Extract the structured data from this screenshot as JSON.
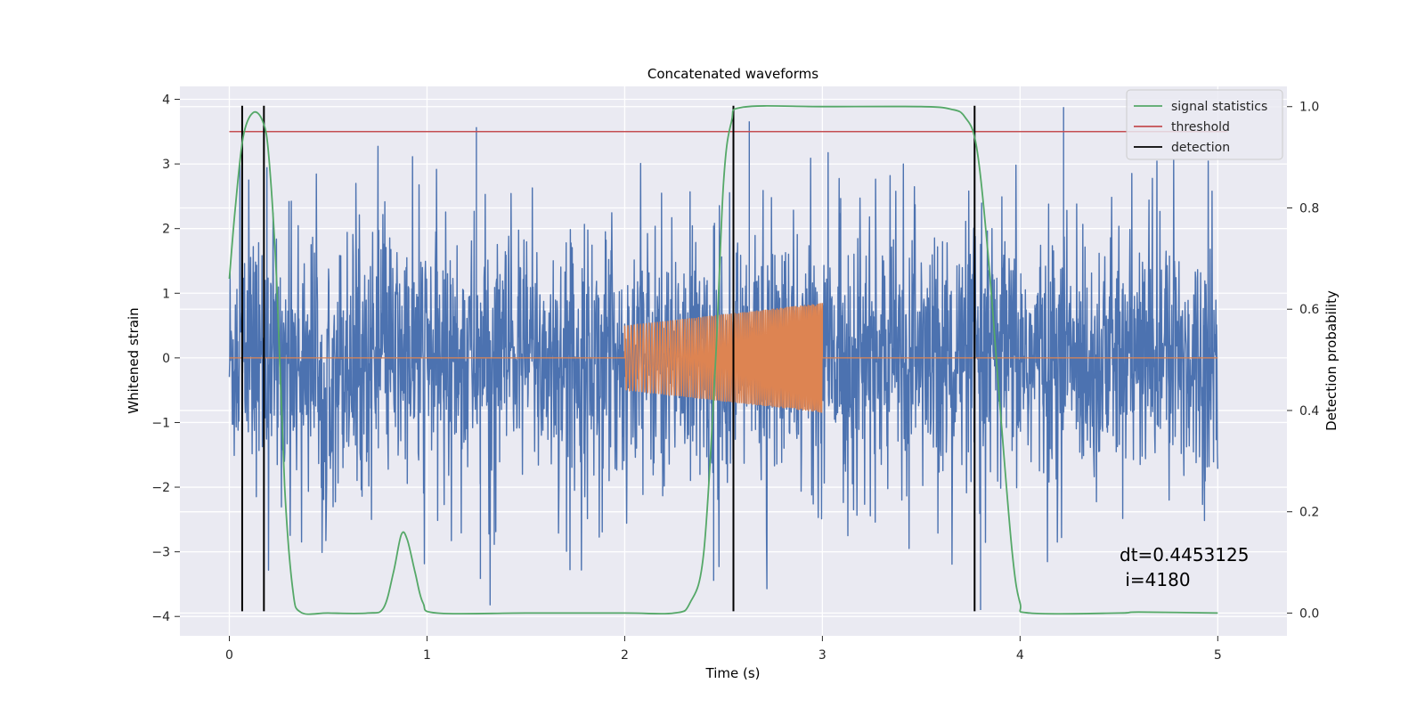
{
  "chart_data": {
    "type": "line",
    "title": "Concatenated waveforms",
    "xlabel": "Time (s)",
    "ylabel": "Whitened strain",
    "y2label": "Detection probability",
    "xlim": [
      -0.25,
      5.35
    ],
    "ylim": [
      -4.3,
      4.2
    ],
    "y2lim": [
      -0.045,
      1.04
    ],
    "xticks": [
      0,
      1,
      2,
      3,
      4,
      5
    ],
    "yticks": [
      -4,
      -3,
      -2,
      -1,
      0,
      1,
      2,
      3,
      4
    ],
    "y2ticks": [
      0.0,
      0.2,
      0.4,
      0.6,
      0.8,
      1.0
    ],
    "xtick_labels": [
      "0",
      "1",
      "2",
      "3",
      "4",
      "5"
    ],
    "ytick_labels": [
      "−4",
      "−3",
      "−2",
      "−1",
      "0",
      "1",
      "2",
      "3",
      "4"
    ],
    "y2tick_labels": [
      "0.0",
      "0.2",
      "0.4",
      "0.6",
      "0.8",
      "1.0"
    ],
    "grid": true,
    "legend_position": "top-right",
    "series": [
      {
        "axis": "left",
        "color": "#4C72B0",
        "description": "whitened noisy strain, t 0 to 5 s, roughly ±2 with spikes to about ±3.8",
        "x_range": [
          0,
          5
        ],
        "amplitude_typical": 1.0,
        "spike_max": 3.88,
        "notable_peaks": [
          [
            0.19,
            2.95
          ],
          [
            1.25,
            3.57
          ],
          [
            2.63,
            3.66
          ],
          [
            4.22,
            3.88
          ],
          [
            1.27,
            -3.42
          ],
          [
            2.45,
            -3.45
          ],
          [
            3.8,
            -3.9
          ]
        ]
      },
      {
        "axis": "left",
        "color": "#DD8452",
        "description": "injected chirp signal, zero outside 2 to 3 s",
        "x_range": [
          0,
          5
        ],
        "chirp_start": 2.0,
        "chirp_end": 3.0,
        "amplitude_start": 0.5,
        "amplitude_end": 0.85
      },
      {
        "axis": "right",
        "name": "signal statistics",
        "color": "#55A868",
        "points": [
          [
            0,
            0.66
          ],
          [
            0.03,
            0.8
          ],
          [
            0.07,
            0.94
          ],
          [
            0.12,
            0.988
          ],
          [
            0.17,
            0.97
          ],
          [
            0.2,
            0.9
          ],
          [
            0.24,
            0.65
          ],
          [
            0.28,
            0.25
          ],
          [
            0.32,
            0.05
          ],
          [
            0.36,
            0.002
          ],
          [
            0.5,
            0.0
          ],
          [
            0.7,
            0.0
          ],
          [
            0.78,
            0.01
          ],
          [
            0.83,
            0.08
          ],
          [
            0.87,
            0.155
          ],
          [
            0.9,
            0.145
          ],
          [
            0.94,
            0.08
          ],
          [
            0.98,
            0.02
          ],
          [
            1.05,
            0.0
          ],
          [
            1.5,
            0.0
          ],
          [
            2.0,
            0.0
          ],
          [
            2.25,
            0.0
          ],
          [
            2.33,
            0.02
          ],
          [
            2.4,
            0.12
          ],
          [
            2.46,
            0.5
          ],
          [
            2.5,
            0.85
          ],
          [
            2.54,
            0.97
          ],
          [
            2.6,
            0.999
          ],
          [
            3.0,
            1.0
          ],
          [
            3.5,
            1.0
          ],
          [
            3.65,
            0.995
          ],
          [
            3.72,
            0.98
          ],
          [
            3.78,
            0.92
          ],
          [
            3.84,
            0.7
          ],
          [
            3.9,
            0.4
          ],
          [
            3.96,
            0.12
          ],
          [
            4.0,
            0.02
          ],
          [
            4.05,
            0.0
          ],
          [
            4.5,
            0.0
          ],
          [
            4.6,
            0.002
          ],
          [
            5.0,
            0.0
          ]
        ]
      },
      {
        "axis": "left",
        "name": "threshold",
        "color": "#C44E52",
        "points": [
          [
            0,
            3.5
          ],
          [
            5.05,
            3.5
          ]
        ]
      },
      {
        "axis": "left",
        "name": "detection",
        "color": "#000000",
        "vlines_x": [
          0.065,
          0.175,
          2.55,
          3.77
        ],
        "vline_range": [
          -3.92,
          3.9
        ]
      }
    ],
    "annotation": {
      "lines": [
        "dt=0.4453125",
        " i=4180"
      ],
      "x": 4.5,
      "y_right": 0.11
    }
  }
}
